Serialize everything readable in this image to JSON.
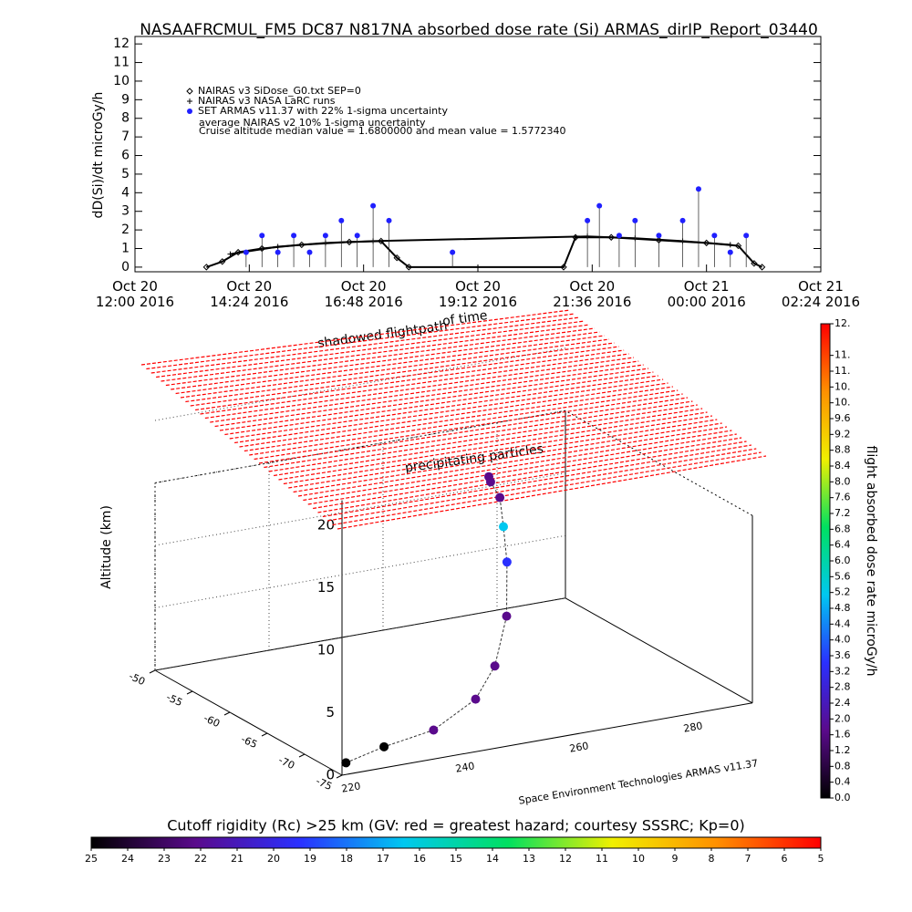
{
  "chart_data": [
    {
      "type": "line",
      "title": "NASAAFRCMUL_FM5 DC87 N817NA absorbed dose rate (Si) ARMAS_dirIP_Report_03440",
      "ylabel": "dD(Si)/dt microGy/h",
      "ylim": [
        -0.25,
        12.4
      ],
      "yticks": [
        0,
        1,
        2,
        3,
        4,
        5,
        6,
        7,
        8,
        9,
        10,
        11,
        12
      ],
      "xlim": [
        "2016-10-20T12:00",
        "2016-10-21T02:24"
      ],
      "xticks": [
        {
          "value": "2016-10-20T12:00",
          "label": "Oct 20\n12:00 2016"
        },
        {
          "value": "2016-10-20T14:24",
          "label": "Oct 20\n14:24 2016"
        },
        {
          "value": "2016-10-20T16:48",
          "label": "Oct 20\n16:48 2016"
        },
        {
          "value": "2016-10-20T19:12",
          "label": "Oct 20\n19:12 2016"
        },
        {
          "value": "2016-10-20T21:36",
          "label": "Oct 20\n21:36 2016"
        },
        {
          "value": "2016-10-21T00:00",
          "label": "Oct 21\n00:00 2016"
        },
        {
          "value": "2016-10-21T02:24",
          "label": "Oct 21\n02:24 2016"
        }
      ],
      "series": [
        {
          "name": "NAIRAS v3 SiDose_G0.txt SEP=0",
          "color": "#000000",
          "marker": "diamond",
          "x": [
            "2016-10-20T13:30",
            "2016-10-20T13:50",
            "2016-10-20T14:10",
            "2016-10-20T14:40",
            "2016-10-20T15:30",
            "2016-10-20T16:30",
            "2016-10-20T17:10",
            "2016-10-20T17:30",
            "2016-10-20T17:45",
            "2016-10-20T21:00",
            "2016-10-20T21:15",
            "2016-10-20T22:00",
            "2016-10-20T23:00",
            "2016-10-21T00:00",
            "2016-10-21T00:40",
            "2016-10-21T01:00",
            "2016-10-21T01:10"
          ],
          "values": [
            0,
            0.3,
            0.8,
            1.0,
            1.2,
            1.35,
            1.4,
            0.5,
            0,
            0,
            1.6,
            1.6,
            1.45,
            1.3,
            1.15,
            0.2,
            0
          ]
        },
        {
          "name": "NAIRAS v3 NASA LaRC runs",
          "color": "#000000",
          "marker": "plus",
          "x": [
            "2016-10-20T14:00",
            "2016-10-20T15:00",
            "2016-10-20T16:00",
            "2016-10-20T17:00",
            "2016-10-20T21:30",
            "2016-10-20T22:30",
            "2016-10-20T23:30",
            "2016-10-21T00:30"
          ],
          "values": [
            0.7,
            1.1,
            1.3,
            1.4,
            1.65,
            1.55,
            1.4,
            1.2
          ]
        },
        {
          "name": "SET ARMAS v11.37 with 22% 1-sigma uncertainty",
          "color": "#2020ff",
          "marker": "dot",
          "x": [
            "2016-10-20T14:20",
            "2016-10-20T14:40",
            "2016-10-20T15:00",
            "2016-10-20T15:20",
            "2016-10-20T15:40",
            "2016-10-20T16:00",
            "2016-10-20T16:20",
            "2016-10-20T16:40",
            "2016-10-20T17:00",
            "2016-10-20T17:20",
            "2016-10-20T18:40",
            "2016-10-20T21:30",
            "2016-10-20T21:45",
            "2016-10-20T22:10",
            "2016-10-20T22:30",
            "2016-10-20T23:00",
            "2016-10-20T23:30",
            "2016-10-20T23:50",
            "2016-10-21T00:10",
            "2016-10-21T00:30",
            "2016-10-21T00:50"
          ],
          "values": [
            0.8,
            1.7,
            0.8,
            1.7,
            0.8,
            1.7,
            2.5,
            1.7,
            3.3,
            2.5,
            0.8,
            2.5,
            3.3,
            1.7,
            2.5,
            1.7,
            2.5,
            4.2,
            1.7,
            0.8,
            1.7
          ]
        }
      ],
      "annotations": [
        "average NAIRAS v2 10% 1-sigma uncertainty",
        "Cruise altitude median value = 1.6800000 and mean value = 1.5772340"
      ]
    },
    {
      "type": "path3d",
      "zlabel": "Altitude (km)",
      "xlim": [
        220,
        292
      ],
      "xticks": [
        220,
        240,
        260,
        280
      ],
      "ylim": [
        -75,
        -50
      ],
      "yticks": [
        -50,
        -55,
        -60,
        -65,
        -70,
        -75
      ],
      "zlim": [
        0,
        22
      ],
      "zticks": [
        0,
        5,
        10,
        15,
        20
      ],
      "lon": [
        222,
        230,
        240,
        250,
        256,
        262,
        266,
        268,
        270,
        271,
        272
      ],
      "lat": [
        -74,
        -73,
        -72,
        -70,
        -68,
        -65,
        -62,
        -60,
        -58,
        -56,
        -55
      ],
      "values": [
        0.3,
        0.6,
        0.9,
        1.4,
        1.8,
        2.2,
        2.6,
        4.4,
        2.4,
        2.0,
        1.8
      ],
      "alt": [
        0.5,
        0.8,
        1,
        2,
        3.5,
        6,
        9,
        11,
        12.5,
        13,
        13
      ],
      "annotations": [
        "shadowed flightpath",
        "of time",
        "precipitating particles",
        "Space Environment Technologies ARMAS v11.37"
      ]
    },
    {
      "type": "colorbar",
      "label": "flight absorbed dose rate microGy/h",
      "colors": [
        "#000000",
        "#5a0a8c",
        "#2a30ff",
        "#00c8f0",
        "#00e060",
        "#f0f000",
        "#ff9000",
        "#ff0000"
      ],
      "ylim": [
        0,
        12
      ],
      "yticks": [
        {
          "value": 0,
          "label": "0.0"
        },
        0.4,
        0.8,
        1.2,
        1.6,
        {
          "value": 2,
          "label": "2.0"
        },
        2.4,
        2.8,
        3.2,
        3.6,
        {
          "value": 4,
          "label": "4.0"
        },
        4.4,
        4.8,
        5.2,
        5.6,
        {
          "value": 6,
          "label": "6.0"
        },
        6.4,
        6.8,
        7.2,
        7.6,
        {
          "value": 8,
          "label": "8.0"
        },
        8.4,
        8.8,
        9.2,
        9.6,
        {
          "value": 10,
          "label": "10."
        },
        {
          "value": 10.4,
          "label": "10."
        },
        {
          "value": 10.8,
          "label": "11."
        },
        {
          "value": 11.2,
          "label": "11."
        },
        {
          "value": 12,
          "label": "12."
        }
      ]
    },
    {
      "type": "colorbar",
      "label": "Cutoff rigidity (Rc) >25 km (GV: red = greatest hazard; courtesy SSSRC; Kp=0)",
      "colors": [
        "#000000",
        "#5a0a8c",
        "#2a30ff",
        "#00c8f0",
        "#00e060",
        "#f0f000",
        "#ff9000",
        "#ff0000"
      ],
      "xlim": [
        25,
        5
      ],
      "xticks": [
        25,
        24,
        23,
        22,
        21,
        20,
        19,
        18,
        17,
        16,
        15,
        14,
        13,
        12,
        11,
        10,
        9,
        8,
        7,
        6,
        5
      ]
    }
  ]
}
